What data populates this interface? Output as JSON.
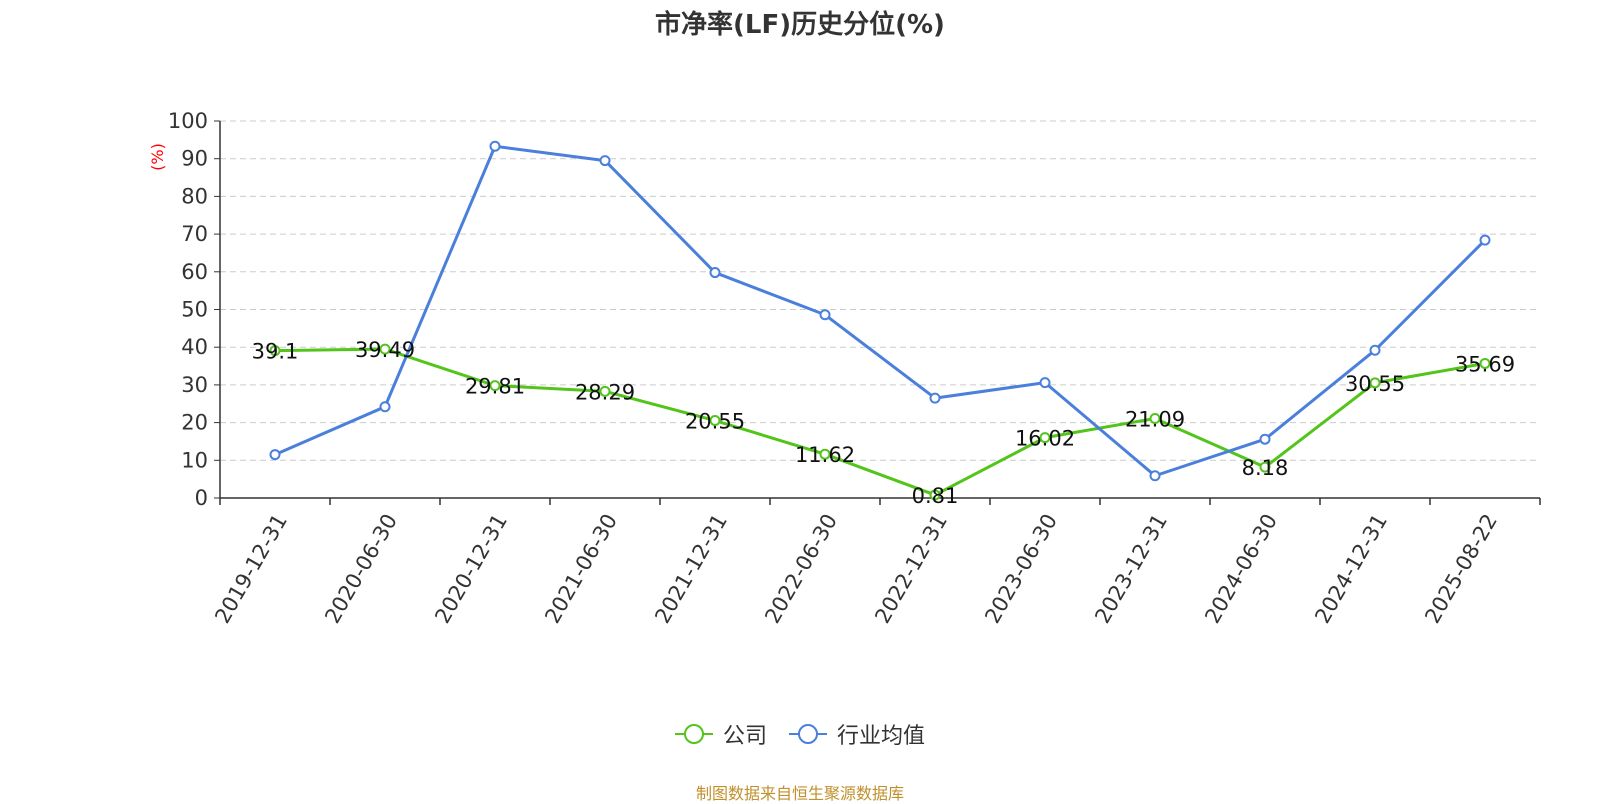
{
  "chart_data": {
    "type": "line",
    "title": "市净率(LF)历史分位(%)",
    "ylabel": "(%)",
    "ylim": [
      0,
      100
    ],
    "yticks": [
      0,
      10,
      20,
      30,
      40,
      50,
      60,
      70,
      80,
      90,
      100
    ],
    "categories": [
      "2019-12-31",
      "2020-06-30",
      "2020-12-31",
      "2021-06-30",
      "2021-12-31",
      "2022-06-30",
      "2022-12-31",
      "2023-06-30",
      "2023-12-31",
      "2024-06-30",
      "2024-12-31",
      "2025-08-22"
    ],
    "series": [
      {
        "name": "公司",
        "color": "#52c41a",
        "values": [
          39.1,
          39.49,
          29.81,
          28.29,
          20.55,
          11.62,
          0.81,
          16.02,
          21.09,
          8.18,
          30.55,
          35.69
        ],
        "labels": [
          "39.1",
          "39.49",
          "29.81",
          "28.29",
          "20.55",
          "11.62",
          "0.81",
          "16.02",
          "21.09",
          "8.18",
          "30.55",
          "35.69"
        ]
      },
      {
        "name": "行业均值",
        "color": "#4a7fdc",
        "values": [
          11.5,
          24.2,
          93.3,
          89.5,
          59.8,
          48.6,
          26.5,
          30.6,
          5.9,
          15.6,
          39.2,
          68.4
        ]
      }
    ],
    "grid": "horizontal-dashed",
    "legend_position": "bottom-center"
  },
  "source_text": "制图数据来自恒生聚源数据库"
}
